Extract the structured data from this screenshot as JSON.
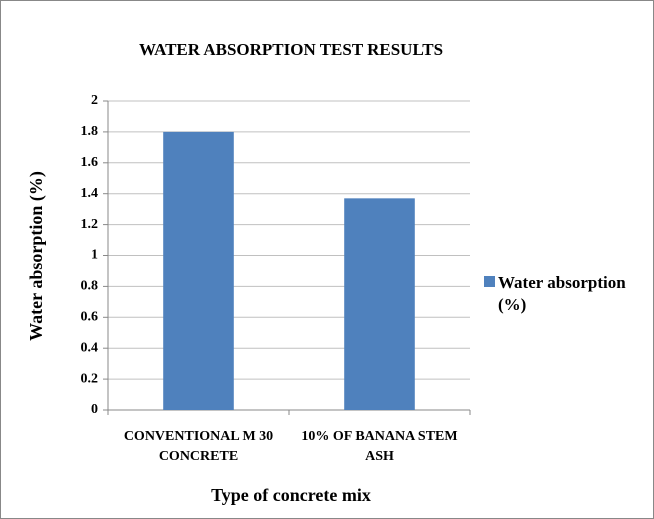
{
  "chart_data": {
    "type": "bar",
    "title": "WATER ABSORPTION TEST RESULTS",
    "x_label": "Type of concrete mix",
    "y_label": "Water absorption (%)",
    "categories": [
      "CONVENTIONAL M 30 CONCRETE",
      "10% OF BANANA STEM ASH"
    ],
    "series": [
      {
        "name": "Water absorption (%)",
        "color": "#4f81bd",
        "values": [
          1.8,
          1.37
        ]
      }
    ],
    "ylim": [
      0,
      2
    ],
    "yticks": [
      0,
      0.2,
      0.4,
      0.6,
      0.8,
      1,
      1.2,
      1.4,
      1.6,
      1.8,
      2
    ],
    "grid": true,
    "legend": "right"
  }
}
